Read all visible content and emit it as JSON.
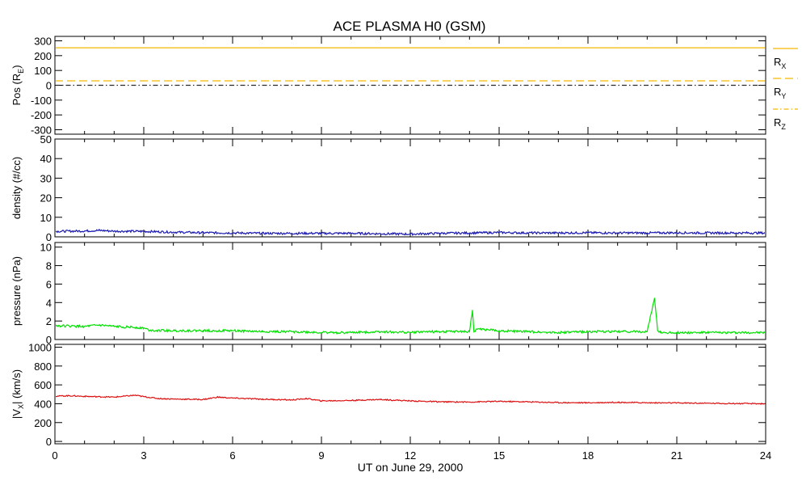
{
  "title": "ACE PLASMA H0 (GSM)",
  "xlabel": "UT on June 29, 2000",
  "x_ticks": [
    "0",
    "3",
    "6",
    "9",
    "12",
    "15",
    "18",
    "21",
    "24"
  ],
  "x_range": [
    0,
    24
  ],
  "panels": [
    {
      "id": "pos",
      "ylabel_main": "Pos (R",
      "ylabel_sub": "E",
      "ylabel_tail": ")",
      "yrange": [
        -330,
        330
      ],
      "yticks": [
        300,
        200,
        100,
        0,
        -100,
        -200,
        -300
      ],
      "ytick_labels": [
        "300",
        "200",
        "100",
        "0",
        "-100",
        "-200",
        "-300"
      ]
    },
    {
      "id": "density",
      "ylabel_main": "density (#/cc)",
      "yrange": [
        0,
        50
      ],
      "yticks": [
        50,
        40,
        30,
        20,
        10,
        0
      ],
      "ytick_labels": [
        "50",
        "40",
        "30",
        "20",
        "10",
        "0"
      ]
    },
    {
      "id": "pressure",
      "ylabel_main": "pressure (nPa)",
      "yrange": [
        0,
        10.5
      ],
      "yticks": [
        10,
        8,
        6,
        4,
        2,
        0
      ],
      "ytick_labels": [
        "10",
        "8",
        "6",
        "4",
        "2",
        "0"
      ]
    },
    {
      "id": "vx",
      "ylabel_pre": "|V",
      "ylabel_sub": "X",
      "ylabel_tail": "| (km/s)",
      "yrange": [
        -25,
        1030
      ],
      "yticks": [
        1000,
        800,
        600,
        400,
        200,
        0
      ],
      "ytick_labels": [
        "1000",
        "800",
        "600",
        "400",
        "200",
        "0"
      ]
    }
  ],
  "legend": [
    {
      "label": "R",
      "sub": "X",
      "style": "solid"
    },
    {
      "label": "R",
      "sub": "Y",
      "style": "dashed"
    },
    {
      "label": "R",
      "sub": "Z",
      "style": "dashdot"
    }
  ],
  "chart_data": {
    "type": "line",
    "title": "ACE PLASMA H0 (GSM)",
    "xlabel": "UT on June 29, 2000",
    "xlim": [
      0,
      24
    ],
    "colors": {
      "pos": "#f5b800",
      "pos_z": "#2b2b2b",
      "density": "#1a1ab0",
      "pressure": "#00e000",
      "vx": "#dd1111"
    },
    "series": [
      {
        "name": "R_X",
        "panel": "pos",
        "x": [
          0,
          24
        ],
        "values": [
          253,
          253
        ]
      },
      {
        "name": "R_Y",
        "panel": "pos",
        "x": [
          0,
          12,
          24
        ],
        "values": [
          30,
          30,
          30
        ]
      },
      {
        "name": "R_Z",
        "panel": "pos",
        "x": [
          0,
          12,
          24
        ],
        "values": [
          0,
          0,
          0
        ]
      },
      {
        "name": "density",
        "panel": "density",
        "x": [
          0,
          1,
          1.5,
          2,
          3,
          4,
          5,
          6,
          7,
          8,
          9,
          10,
          11,
          12,
          13,
          14,
          15,
          16,
          17,
          18,
          19,
          20,
          21,
          22,
          23,
          24
        ],
        "values": [
          2.8,
          3.0,
          3.3,
          2.9,
          2.8,
          2.4,
          2.1,
          2.0,
          1.8,
          1.8,
          1.8,
          1.8,
          1.6,
          1.4,
          1.8,
          2.0,
          2.2,
          2.0,
          2.0,
          2.1,
          2.0,
          2.0,
          2.1,
          2.0,
          2.0,
          2.0
        ]
      },
      {
        "name": "pressure",
        "panel": "pressure",
        "x": [
          0,
          1,
          1.5,
          2,
          2.5,
          3,
          3.2,
          4,
          5,
          6,
          7,
          8,
          9,
          10,
          11,
          12,
          12.5,
          13,
          14,
          14.1,
          14.15,
          14.25,
          15,
          16,
          17,
          18,
          19,
          20,
          20.25,
          20.35,
          20.45,
          21,
          22,
          23,
          24
        ],
        "values": [
          1.5,
          1.4,
          1.55,
          1.4,
          1.35,
          1.25,
          1.0,
          0.95,
          0.95,
          0.95,
          0.85,
          0.85,
          0.75,
          0.75,
          0.85,
          0.75,
          0.85,
          0.85,
          0.85,
          3.2,
          0.85,
          1.15,
          0.95,
          0.85,
          0.75,
          0.85,
          0.85,
          0.85,
          4.5,
          0.95,
          0.75,
          0.75,
          0.75,
          0.75,
          0.75
        ]
      },
      {
        "name": "|V_X|",
        "panel": "vx",
        "x": [
          0,
          0.5,
          1,
          2,
          2.7,
          3,
          3.5,
          4,
          5,
          5.5,
          6,
          7,
          8,
          8.5,
          9,
          10,
          11,
          12,
          13,
          14,
          15,
          16,
          17,
          18,
          19,
          20,
          21,
          22,
          23,
          24
        ],
        "values": [
          480,
          485,
          478,
          470,
          490,
          475,
          455,
          450,
          445,
          470,
          460,
          448,
          440,
          455,
          430,
          435,
          445,
          430,
          420,
          418,
          425,
          420,
          412,
          410,
          415,
          410,
          408,
          405,
          402,
          400
        ]
      }
    ]
  }
}
